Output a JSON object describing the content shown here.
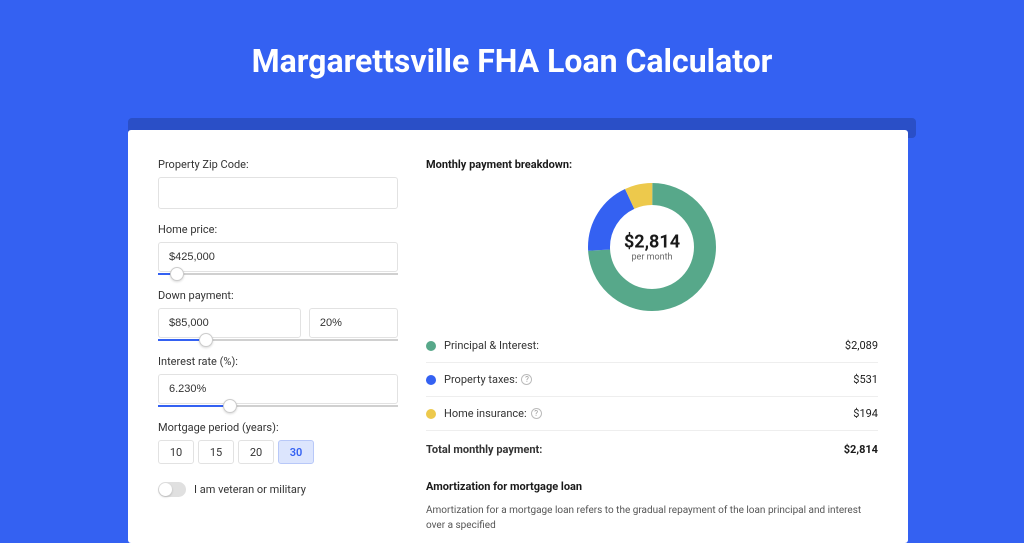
{
  "page": {
    "title": "Margarettsville FHA Loan Calculator",
    "background_color": "#3461f2"
  },
  "form": {
    "zip": {
      "label": "Property Zip Code:",
      "value": ""
    },
    "home_price": {
      "label": "Home price:",
      "value": "$425,000",
      "slider_pct": 8
    },
    "down_payment": {
      "label": "Down payment:",
      "value": "$85,000",
      "pct_value": "20%",
      "slider_pct": 20
    },
    "interest": {
      "label": "Interest rate (%):",
      "value": "6.230%",
      "slider_pct": 30
    },
    "period": {
      "label": "Mortgage period (years):",
      "options": [
        "10",
        "15",
        "20",
        "30"
      ],
      "selected": "30"
    },
    "veteran": {
      "label": "I am veteran or military",
      "checked": false
    }
  },
  "breakdown": {
    "title": "Monthly payment breakdown:",
    "center_amount": "$2,814",
    "center_sub": "per month",
    "donut": {
      "size": 128,
      "thickness": 22,
      "segments": [
        {
          "color": "#57a88a",
          "pct": 74
        },
        {
          "color": "#3461f2",
          "pct": 19
        },
        {
          "color": "#edc94c",
          "pct": 7
        }
      ]
    },
    "lines": [
      {
        "dot": "#57a88a",
        "label": "Principal & Interest:",
        "info": false,
        "value": "$2,089"
      },
      {
        "dot": "#3461f2",
        "label": "Property taxes:",
        "info": true,
        "value": "$531"
      },
      {
        "dot": "#edc94c",
        "label": "Home insurance:",
        "info": true,
        "value": "$194"
      }
    ],
    "total": {
      "label": "Total monthly payment:",
      "value": "$2,814"
    }
  },
  "amortization": {
    "title": "Amortization for mortgage loan",
    "text": "Amortization for a mortgage loan refers to the gradual repayment of the loan principal and interest over a specified"
  }
}
